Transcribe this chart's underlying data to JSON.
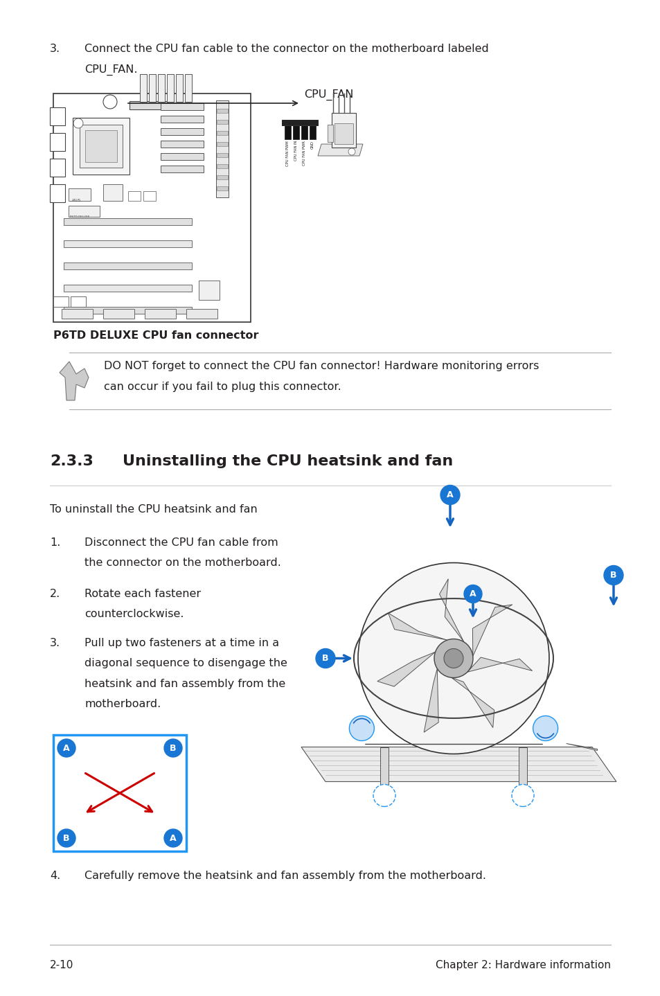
{
  "bg_color": "#ffffff",
  "text_color": "#231f20",
  "page_width": 9.54,
  "page_height": 14.38,
  "dpi": 100,
  "ml": 0.72,
  "mr": 0.72,
  "body_fs": 11.5,
  "section_fs": 16,
  "footer_fs": 11,
  "footer_left": "2-10",
  "footer_right": "Chapter 2: Hardware information",
  "section_number": "2.3.3",
  "section_title": "Uninstalling the CPU heatsink and fan",
  "caption_text": "P6TD DELUXE CPU fan connector",
  "note_line1": "DO NOT forget to connect the CPU fan connector! Hardware monitoring errors",
  "note_line2": "can occur if you fail to plug this connector.",
  "intro_text": "To uninstall the CPU heatsink and fan",
  "step1_line1": "Disconnect the CPU fan cable from",
  "step1_line2": "the connector on the motherboard.",
  "step2_line1": "Rotate each fastener",
  "step2_line2": "counterclockwise.",
  "step3_line1": "Pull up two fasteners at a time in a",
  "step3_line2": "diagonal sequence to disengage the",
  "step3_line3": "heatsink and fan assembly from the",
  "step3_line4": "motherboard.",
  "step4_text": "Carefully remove the heatsink and fan assembly from the motherboard.",
  "step0_line1": "Connect the CPU fan cable to the connector on the motherboard labeled",
  "step0_line2": "CPU_FAN."
}
